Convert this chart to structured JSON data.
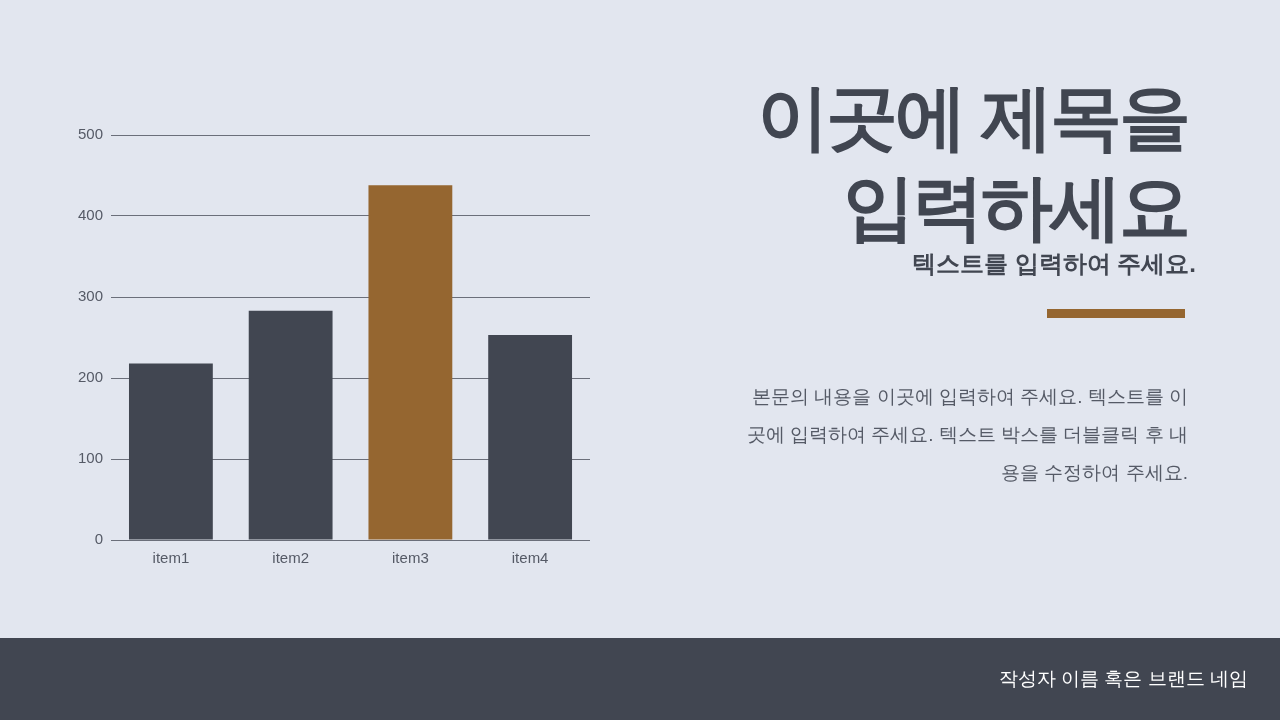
{
  "chart_data": {
    "type": "bar",
    "title": "이곳에 제목을 입력하세요",
    "subtitle": "텍스트를 입력하여 주세요.",
    "categories": [
      "item1",
      "item2",
      "item3",
      "item4"
    ],
    "values": [
      218,
      283,
      438,
      253
    ],
    "colors": [
      "#414651",
      "#414651",
      "#956630",
      "#414651"
    ],
    "ylim": [
      0,
      500
    ],
    "yticks": [
      0,
      100,
      200,
      300,
      400,
      500
    ],
    "grid": "y",
    "legend": false,
    "annotations": [
      "본문의 내용을 이곳에 입력하여 주세요. 텍스트를 이곳에 입력하여 주세요. 텍스트 박스를 더블클릭 후 내용을 수정하여 주세요.",
      "작성자 이름 혹은 브랜드 네임"
    ]
  }
}
